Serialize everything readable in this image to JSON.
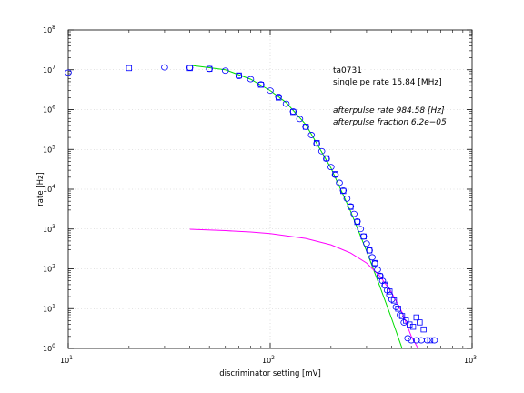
{
  "chart_data": {
    "type": "scatter",
    "xlabel": "discriminator setting [mV]",
    "ylabel": "rate [Hz]",
    "xscale": "log",
    "yscale": "log",
    "xlim": [
      10,
      1000
    ],
    "ylim": [
      1,
      100000000
    ],
    "grid": true,
    "x_ticks": [
      {
        "base": "10",
        "exp": "1"
      },
      {
        "base": "10",
        "exp": "2"
      },
      {
        "base": "10",
        "exp": "3"
      }
    ],
    "y_ticks": [
      {
        "base": "10",
        "exp": "0"
      },
      {
        "base": "10",
        "exp": "1"
      },
      {
        "base": "10",
        "exp": "2"
      },
      {
        "base": "10",
        "exp": "3"
      },
      {
        "base": "10",
        "exp": "4"
      },
      {
        "base": "10",
        "exp": "5"
      },
      {
        "base": "10",
        "exp": "6"
      },
      {
        "base": "10",
        "exp": "7"
      },
      {
        "base": "10",
        "exp": "8"
      }
    ],
    "annotations": [
      {
        "text": "ta0731",
        "italic": false
      },
      {
        "text": "single pe rate 15.84 [MHz]",
        "italic": false
      },
      {
        "text": "afterpulse rate 984.58 [Hz]",
        "italic": true
      },
      {
        "text": "afterpulse fraction 6.2e−05",
        "italic": true
      }
    ],
    "colors": {
      "squares": "#0000ff",
      "circles": "#0000ff",
      "fit": "#00dd00",
      "afterpulse": "#ff00ff"
    },
    "series": [
      {
        "marker": "square",
        "points": [
          [
            20,
            11000000
          ],
          [
            40,
            11000000
          ],
          [
            50,
            10500000
          ],
          [
            70,
            7200000
          ],
          [
            90,
            4200000
          ],
          [
            110,
            2000000
          ],
          [
            130,
            870000
          ],
          [
            150,
            370000
          ],
          [
            170,
            145000
          ],
          [
            190,
            60000
          ],
          [
            210,
            24000
          ],
          [
            230,
            9000
          ],
          [
            250,
            3600
          ],
          [
            270,
            1500
          ],
          [
            290,
            650
          ],
          [
            310,
            290
          ],
          [
            330,
            140
          ],
          [
            350,
            65
          ],
          [
            370,
            40
          ],
          [
            390,
            27
          ],
          [
            410,
            16
          ],
          [
            430,
            10
          ],
          [
            450,
            6.5
          ],
          [
            470,
            5
          ],
          [
            490,
            4
          ],
          [
            510,
            3.5
          ],
          [
            530,
            6
          ],
          [
            550,
            4.5
          ],
          [
            575,
            3
          ],
          [
            620,
            1.6
          ]
        ]
      },
      {
        "marker": "circle",
        "points": [
          [
            10,
            8500000
          ],
          [
            30,
            11500000
          ],
          [
            40,
            11300000
          ],
          [
            50,
            10500000
          ],
          [
            60,
            9500000
          ],
          [
            70,
            7000000
          ],
          [
            80,
            5800000
          ],
          [
            90,
            4300000
          ],
          [
            100,
            3000000
          ],
          [
            110,
            2100000
          ],
          [
            120,
            1400000
          ],
          [
            130,
            900000
          ],
          [
            140,
            580000
          ],
          [
            150,
            370000
          ],
          [
            160,
            230000
          ],
          [
            170,
            140000
          ],
          [
            180,
            90000
          ],
          [
            190,
            58000
          ],
          [
            200,
            36000
          ],
          [
            210,
            23000
          ],
          [
            220,
            14500
          ],
          [
            230,
            9300
          ],
          [
            240,
            5800
          ],
          [
            250,
            3700
          ],
          [
            260,
            2400
          ],
          [
            270,
            1550
          ],
          [
            280,
            1000
          ],
          [
            290,
            650
          ],
          [
            300,
            430
          ],
          [
            310,
            290
          ],
          [
            320,
            195
          ],
          [
            330,
            135
          ],
          [
            340,
            95
          ],
          [
            350,
            67
          ],
          [
            360,
            50
          ],
          [
            370,
            38
          ],
          [
            380,
            29
          ],
          [
            390,
            22
          ],
          [
            400,
            17
          ],
          [
            420,
            11
          ],
          [
            440,
            7
          ],
          [
            460,
            4.5
          ],
          [
            480,
            1.8
          ],
          [
            500,
            1.6
          ],
          [
            530,
            1.6
          ],
          [
            560,
            1.6
          ],
          [
            600,
            1.6
          ],
          [
            650,
            1.6
          ]
        ]
      }
    ],
    "curves": [
      {
        "role": "fit",
        "points": [
          [
            40,
            13000000
          ],
          [
            60,
            10000000
          ],
          [
            80,
            5800000
          ],
          [
            100,
            3000000
          ],
          [
            120,
            1500000
          ],
          [
            150,
            420000
          ],
          [
            200,
            34000
          ],
          [
            250,
            2800
          ],
          [
            300,
            280
          ],
          [
            350,
            35
          ],
          [
            400,
            5.5
          ],
          [
            450,
            1
          ]
        ]
      },
      {
        "role": "afterpulse",
        "points": [
          [
            40,
            985
          ],
          [
            60,
            910
          ],
          [
            80,
            840
          ],
          [
            100,
            770
          ],
          [
            150,
            580
          ],
          [
            200,
            400
          ],
          [
            250,
            250
          ],
          [
            300,
            140
          ],
          [
            350,
            65
          ],
          [
            400,
            25
          ],
          [
            450,
            8
          ],
          [
            500,
            2
          ],
          [
            540,
            1
          ]
        ]
      }
    ]
  }
}
